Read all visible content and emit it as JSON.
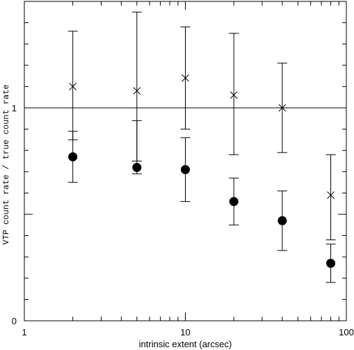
{
  "chart_data": {
    "type": "scatter",
    "xlabel": "intrinsic extent (arcsec)",
    "ylabel": "VTP count rate / true count rate",
    "xscale": "log",
    "xlim": [
      1,
      100
    ],
    "ylim": [
      0,
      1.5
    ],
    "x_tick_labels": [
      "1",
      "10",
      "100"
    ],
    "y_tick_labels": [
      "0",
      "1"
    ],
    "reference_line_y": 1.0,
    "grid": false,
    "legend": "none",
    "series": [
      {
        "marker": "cross",
        "points": [
          {
            "x": 2,
            "y": 1.1,
            "ylo": 0.85,
            "yhi": 1.36
          },
          {
            "x": 5,
            "y": 1.08,
            "ylo": 0.75,
            "yhi": 1.45
          },
          {
            "x": 10,
            "y": 1.14,
            "ylo": 0.9,
            "yhi": 1.38
          },
          {
            "x": 20,
            "y": 1.06,
            "ylo": 0.78,
            "yhi": 1.35
          },
          {
            "x": 40,
            "y": 1.0,
            "ylo": 0.79,
            "yhi": 1.21
          },
          {
            "x": 80,
            "y": 0.59,
            "ylo": 0.38,
            "yhi": 0.78
          }
        ]
      },
      {
        "marker": "filled-circle",
        "points": [
          {
            "x": 2,
            "y": 0.77,
            "ylo": 0.65,
            "yhi": 0.89
          },
          {
            "x": 5,
            "y": 0.72,
            "ylo": 0.69,
            "yhi": 0.94
          },
          {
            "x": 10,
            "y": 0.71,
            "ylo": 0.56,
            "yhi": 0.86
          },
          {
            "x": 20,
            "y": 0.56,
            "ylo": 0.45,
            "yhi": 0.67
          },
          {
            "x": 40,
            "y": 0.47,
            "ylo": 0.33,
            "yhi": 0.61
          },
          {
            "x": 80,
            "y": 0.27,
            "ylo": 0.18,
            "yhi": 0.36
          }
        ]
      }
    ]
  }
}
